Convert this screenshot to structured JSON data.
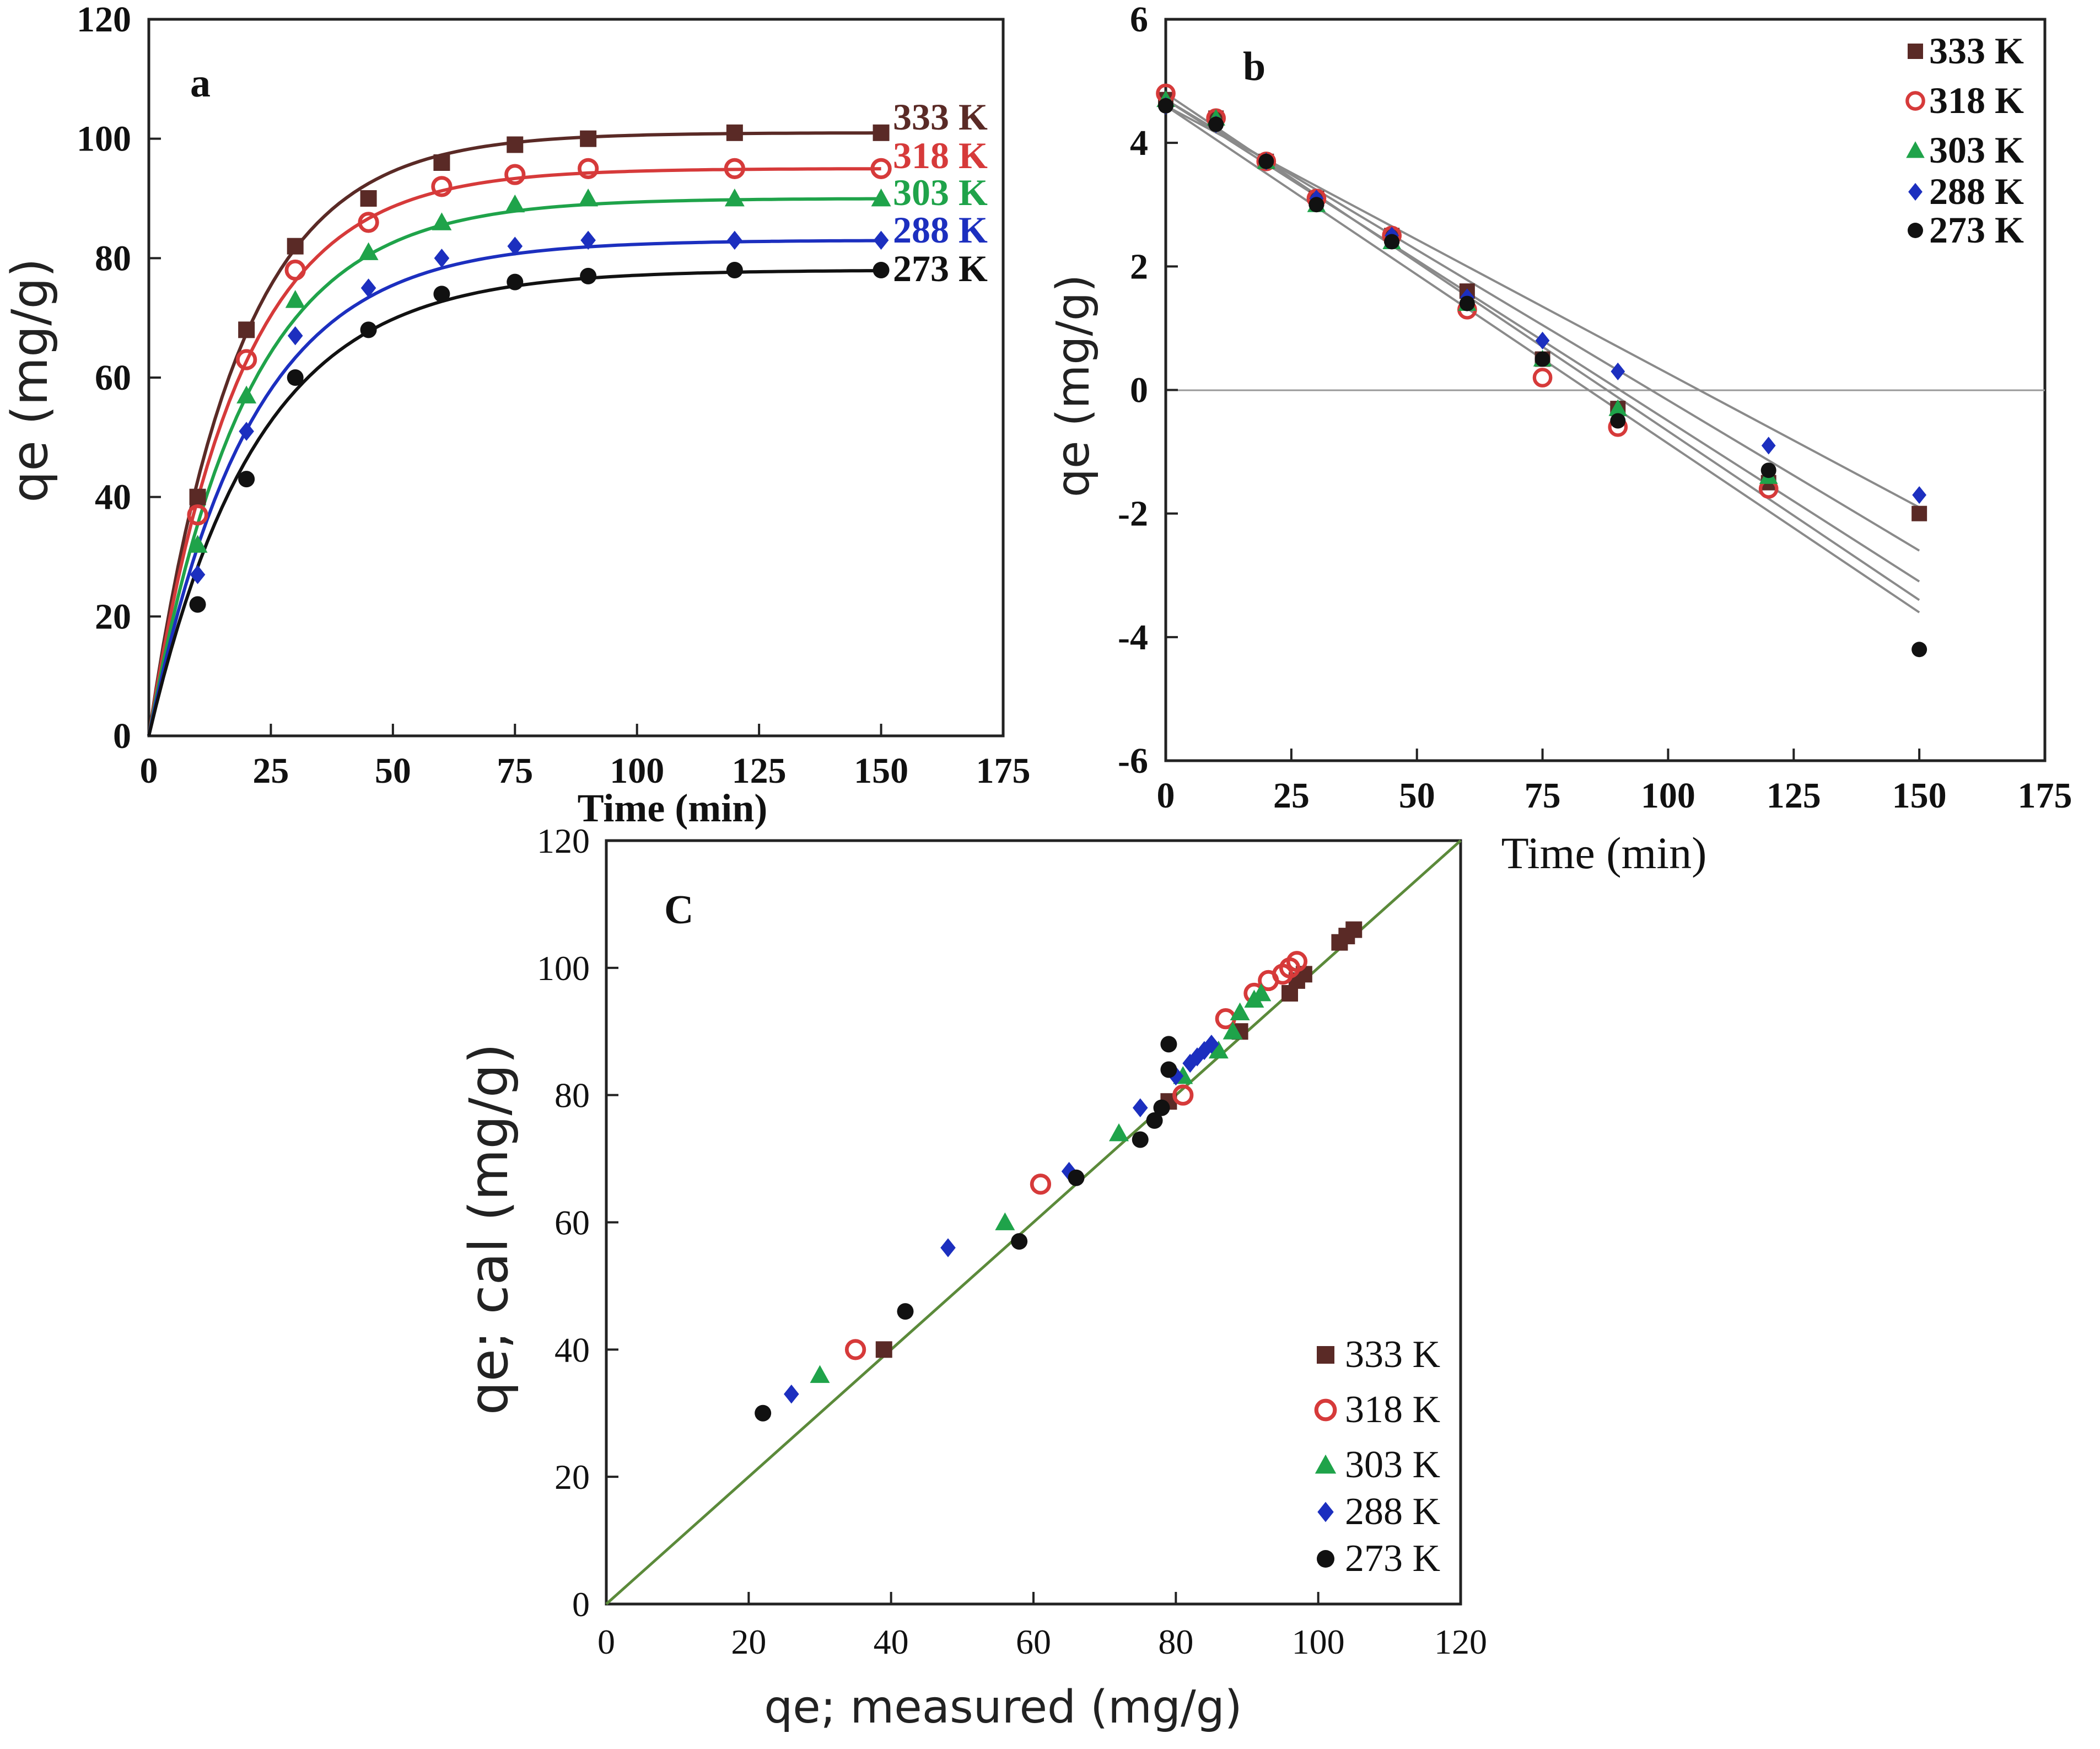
{
  "colors": {
    "K333": "#5a2a26",
    "K318": "#d63a3a",
    "K303": "#1fa34a",
    "K288": "#1c2fbf",
    "K273": "#111111",
    "fit_gray": "#8a8a8a",
    "diag_green": "#5b8a3a"
  },
  "series_names": [
    "333 K",
    "318 K",
    "303 K",
    "288 K",
    "273 K"
  ],
  "chart_data": [
    {
      "panel": "a",
      "type": "line",
      "title": "a",
      "xlabel": "Time (min)",
      "ylabel": "qe (mg/g)",
      "xlim": [
        0,
        175
      ],
      "ylim": [
        0,
        120
      ],
      "xticks": [
        0,
        25,
        50,
        75,
        100,
        125,
        150,
        175
      ],
      "yticks": [
        0,
        20,
        40,
        60,
        80,
        100,
        120
      ],
      "x": [
        10,
        20,
        30,
        45,
        60,
        75,
        90,
        120,
        150
      ],
      "series": [
        {
          "name": "333 K",
          "marker": "square",
          "values": [
            40,
            68,
            82,
            90,
            96,
            99,
            100,
            101,
            101
          ]
        },
        {
          "name": "318 K",
          "marker": "circle-open",
          "values": [
            37,
            63,
            78,
            86,
            92,
            94,
            95,
            95,
            95
          ]
        },
        {
          "name": "303 K",
          "marker": "triangle",
          "values": [
            32,
            57,
            73,
            81,
            86,
            89,
            90,
            90,
            90
          ]
        },
        {
          "name": "288 K",
          "marker": "diamond",
          "values": [
            27,
            51,
            67,
            75,
            80,
            82,
            83,
            83,
            83
          ]
        },
        {
          "name": "273 K",
          "marker": "circle",
          "values": [
            22,
            43,
            60,
            68,
            74,
            76,
            77,
            78,
            78
          ]
        }
      ],
      "fits": [
        {
          "name": "333 K",
          "qmax": 101,
          "k": 0.055
        },
        {
          "name": "318 K",
          "qmax": 95,
          "k": 0.054
        },
        {
          "name": "303 K",
          "qmax": 90,
          "k": 0.05
        },
        {
          "name": "288 K",
          "qmax": 83,
          "k": 0.048
        },
        {
          "name": "273 K",
          "qmax": 78,
          "k": 0.045
        }
      ],
      "legend": "right, beside curve ends"
    },
    {
      "panel": "b",
      "type": "scatter",
      "title": "b",
      "xlabel": "Time (min)",
      "ylabel": "qe (mg/g)",
      "xlim": [
        0,
        175
      ],
      "ylim": [
        -6,
        6
      ],
      "xticks": [
        0,
        25,
        50,
        75,
        100,
        125,
        150,
        175
      ],
      "yticks": [
        -6,
        -4,
        -2,
        0,
        2,
        4,
        6
      ],
      "x": [
        0,
        10,
        20,
        30,
        45,
        60,
        75,
        90,
        120,
        150
      ],
      "series": [
        {
          "name": "333 K",
          "marker": "square",
          "values": [
            4.7,
            4.4,
            3.7,
            3.1,
            2.5,
            1.6,
            0.5,
            -0.3,
            -1.5,
            -2.0
          ]
        },
        {
          "name": "318 K",
          "marker": "circle-open",
          "values": [
            4.8,
            4.4,
            3.7,
            3.1,
            2.5,
            1.3,
            0.2,
            -0.6,
            -1.6,
            null
          ]
        },
        {
          "name": "303 K",
          "marker": "triangle",
          "values": [
            4.7,
            4.4,
            3.7,
            3.0,
            2.4,
            1.4,
            0.5,
            -0.3,
            -1.4,
            null
          ]
        },
        {
          "name": "288 K",
          "marker": "diamond",
          "values": [
            4.6,
            4.3,
            3.7,
            3.1,
            2.5,
            1.5,
            0.8,
            0.3,
            -0.9,
            -1.7
          ]
        },
        {
          "name": "273 K",
          "marker": "circle",
          "values": [
            4.6,
            4.3,
            3.7,
            3.0,
            2.4,
            1.4,
            0.5,
            -0.5,
            -1.3,
            -4.2
          ]
        }
      ],
      "fit_lines": [
        {
          "name": "288 K",
          "from": [
            0,
            4.6
          ],
          "to": [
            150,
            -1.9
          ]
        },
        {
          "name": "333 K",
          "from": [
            0,
            4.7
          ],
          "to": [
            150,
            -2.6
          ]
        },
        {
          "name": "303 K",
          "from": [
            0,
            4.7
          ],
          "to": [
            150,
            -3.1
          ]
        },
        {
          "name": "318 K",
          "from": [
            0,
            4.8
          ],
          "to": [
            150,
            -3.4
          ]
        },
        {
          "name": "273 K",
          "from": [
            0,
            4.6
          ],
          "to": [
            150,
            -3.6
          ]
        }
      ],
      "legend": "top-right"
    },
    {
      "panel": "C",
      "type": "scatter",
      "title": "C",
      "xlabel": "qe; measured (mg/g)",
      "ylabel": "qe; cal (mg/g)",
      "xlim": [
        0,
        120
      ],
      "ylim": [
        0,
        120
      ],
      "xticks": [
        0,
        20,
        40,
        60,
        80,
        100,
        120
      ],
      "yticks": [
        0,
        20,
        40,
        60,
        80,
        100,
        120
      ],
      "identity_line": true,
      "series": [
        {
          "name": "333 K",
          "marker": "square",
          "points": [
            [
              39,
              40
            ],
            [
              79,
              79
            ],
            [
              89,
              90
            ],
            [
              96,
              96
            ],
            [
              97,
              98
            ],
            [
              98,
              99
            ],
            [
              103,
              104
            ],
            [
              104,
              105
            ],
            [
              105,
              106
            ]
          ]
        },
        {
          "name": "318 K",
          "marker": "circle-open",
          "points": [
            [
              35,
              40
            ],
            [
              61,
              66
            ],
            [
              81,
              80
            ],
            [
              87,
              92
            ],
            [
              91,
              96
            ],
            [
              93,
              98
            ],
            [
              95,
              99
            ],
            [
              96,
              100
            ],
            [
              97,
              101
            ]
          ]
        },
        {
          "name": "303 K",
          "marker": "triangle",
          "points": [
            [
              30,
              36
            ],
            [
              56,
              60
            ],
            [
              72,
              74
            ],
            [
              81,
              83
            ],
            [
              86,
              87
            ],
            [
              88,
              90
            ],
            [
              89,
              93
            ],
            [
              91,
              95
            ],
            [
              92,
              96
            ]
          ]
        },
        {
          "name": "288 K",
          "marker": "diamond",
          "points": [
            [
              26,
              33
            ],
            [
              48,
              56
            ],
            [
              65,
              68
            ],
            [
              75,
              78
            ],
            [
              80,
              83
            ],
            [
              82,
              85
            ],
            [
              83,
              86
            ],
            [
              84,
              87
            ],
            [
              85,
              88
            ]
          ]
        },
        {
          "name": "273 K",
          "marker": "circle",
          "points": [
            [
              22,
              30
            ],
            [
              42,
              46
            ],
            [
              58,
              57
            ],
            [
              66,
              67
            ],
            [
              75,
              73
            ],
            [
              77,
              76
            ],
            [
              78,
              78
            ],
            [
              79,
              84
            ],
            [
              79,
              88
            ]
          ]
        }
      ],
      "legend": "bottom-right"
    }
  ]
}
